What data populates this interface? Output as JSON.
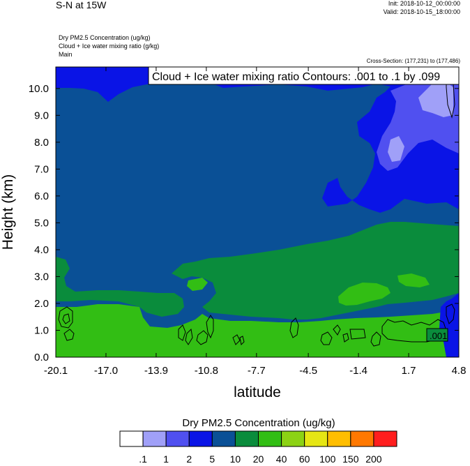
{
  "header": {
    "title": "S-N at 15W",
    "init": "Init: 2018-10-12_00:00:00",
    "valid": "Valid: 2018-10-15_18:00:00",
    "field1": "Dry PM2.5 Concentration   (ug/kg)",
    "field2": "Cloud + Ice water mixing ratio   (g/kg)",
    "field3": "Main",
    "cross_section": "Cross-Section: (177,231) to (177,486)"
  },
  "chart_data": {
    "type": "heatmap",
    "title": "",
    "xlabel": "latitude",
    "ylabel": "Height (km)",
    "xlim": [
      -20.1,
      4.8
    ],
    "ylim": [
      0.0,
      10.8
    ],
    "x_ticks": [
      "-20.1",
      "-17.0",
      "-13.9",
      "-10.8",
      "-7.7",
      "-4.5",
      "-1.4",
      "1.7",
      "4.8"
    ],
    "y_ticks": [
      "0.0",
      "1.0",
      "2.0",
      "3.0",
      "4.0",
      "5.0",
      "6.0",
      "7.0",
      "8.0",
      "9.0",
      "10.0"
    ],
    "contour_info": "Cloud + Ice water mixing ratio Contours: .001 to .1 by .099",
    "contour_label": ".001",
    "colorbar": {
      "title": "Dry PM2.5 Concentration  (ug/kg)",
      "labels": [
        ".1",
        "1",
        "2",
        "5",
        "10",
        "20",
        "40",
        "60",
        "100",
        "150",
        "200"
      ],
      "colors": [
        "#ffffff",
        "#a0a0f8",
        "#5050f0",
        "#0a14e6",
        "#0a5096",
        "#0a8c3c",
        "#32be14",
        "#8cd214",
        "#e6e614",
        "#ffbe00",
        "#ff7800",
        "#ff1e1e"
      ]
    },
    "regions": [
      {
        "name": "pm25-10-20",
        "color": "#0a8c3c"
      },
      {
        "name": "pm25-20-40",
        "color": "#32be14"
      },
      {
        "name": "pm25-5-10",
        "color": "#0a5096"
      },
      {
        "name": "pm25-2-5",
        "color": "#0a14e6"
      },
      {
        "name": "pm25-1-2",
        "color": "#5050f0"
      },
      {
        "name": "pm25-0.1-1",
        "color": "#a0a0f8"
      }
    ]
  }
}
